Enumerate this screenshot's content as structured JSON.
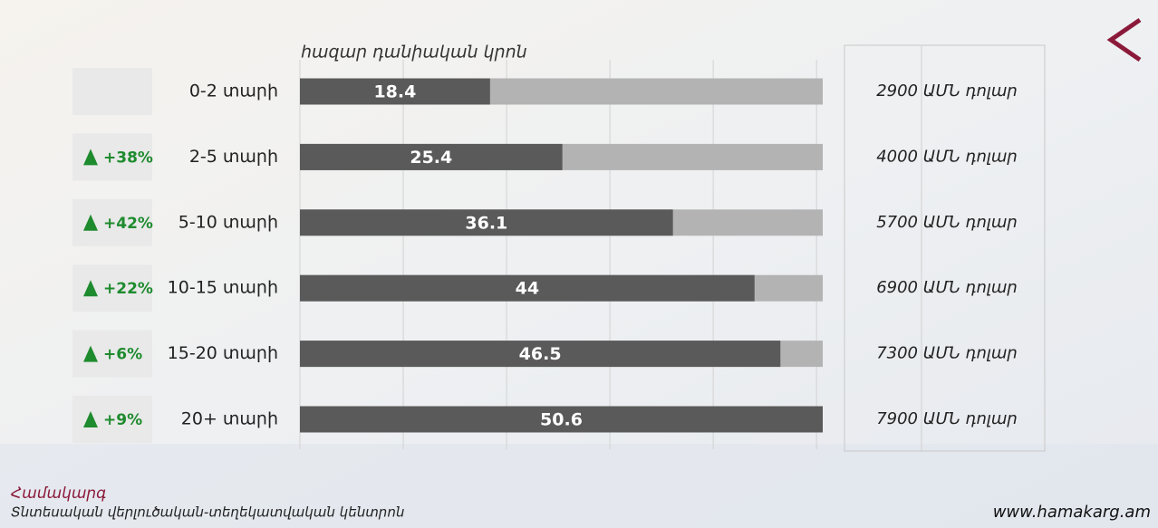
{
  "chart_data": {
    "type": "bar",
    "axis_label": "հազար դանիական կրոն",
    "categories": [
      "0-2 տարի",
      "2-5 տարի",
      "5-10 տարի",
      "10-15 տարի",
      "15-20 տարի",
      "20+ տարի"
    ],
    "values": [
      18.4,
      25.4,
      36.1,
      44,
      46.5,
      50.6
    ],
    "changes": [
      null,
      "+38%",
      "+42%",
      "+22%",
      "+6%",
      "+9%"
    ],
    "dollar_labels": [
      "2900 ԱՄՆ դոլար",
      "4000 ԱՄՆ դոլար",
      "5700 ԱՄՆ դոլար",
      "6900 ԱՄՆ դոլար",
      "7300 ԱՄՆ դոլար",
      "7900 ԱՄՆ դոլար"
    ],
    "color": "#5a5a5a",
    "track_color": "#b3b3b3",
    "xlim": [
      0,
      50.6
    ],
    "xticks": [
      0,
      10,
      20,
      30,
      40,
      50
    ],
    "grid": true
  },
  "footer": {
    "brand": "Համակարգ",
    "subtitle": "Տնտեսական վերլուծական-տեղեկատվական կենտրոն",
    "url": "www.hamakarg.am"
  }
}
